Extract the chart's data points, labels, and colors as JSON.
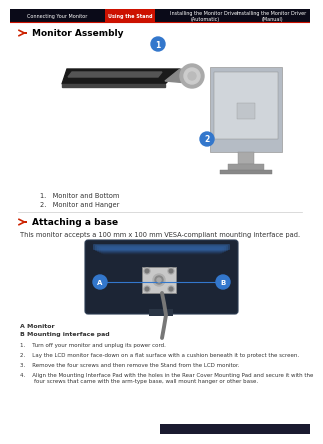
{
  "page_bg": "#ffffff",
  "nav_bg": "#0a0a18",
  "nav_active_bg": "#cc1100",
  "nav_items": [
    "Connecting Your Monitor",
    "Using the Stand",
    "Installing the Monitor Driver\n(Automatic)",
    "Installing the Monitor Driver\n(Manual)"
  ],
  "nav_active_idx": 1,
  "nav_separator_color": "#cc1100",
  "section1_title": "Monitor Assembly",
  "section1_list": [
    "1.   Monitor and Bottom",
    "2.   Monitor and Hanger"
  ],
  "divider_color": "#cccccc",
  "section2_title": "Attaching a base",
  "section2_desc": "This monitor accepts a 100 mm x 100 mm VESA-compliant mounting interface pad.",
  "label_A": "A Monitor",
  "label_B": "B Mounting interface pad",
  "steps": [
    "1.    Turn off your monitor and unplug its power cord.",
    "2.    Lay the LCD monitor face-down on a flat surface with a cushion beneath it to protect the screen.",
    "3.    Remove the four screws and then remove the Stand from the LCD monitor.",
    "4.    Align the Mounting Interface Pad with the holes in the Rear Cover Mounting Pad and secure it with the\n        four screws that came with the arm-type base, wall mount hanger or other base."
  ],
  "accent_blue": "#3377cc",
  "text_dark": "#333333",
  "arrow_red": "#cc2200",
  "bottom_bar_color": "#1a1a30",
  "font_nav": 3.5,
  "font_title": 6.5,
  "font_body": 4.8,
  "font_small": 4.5
}
